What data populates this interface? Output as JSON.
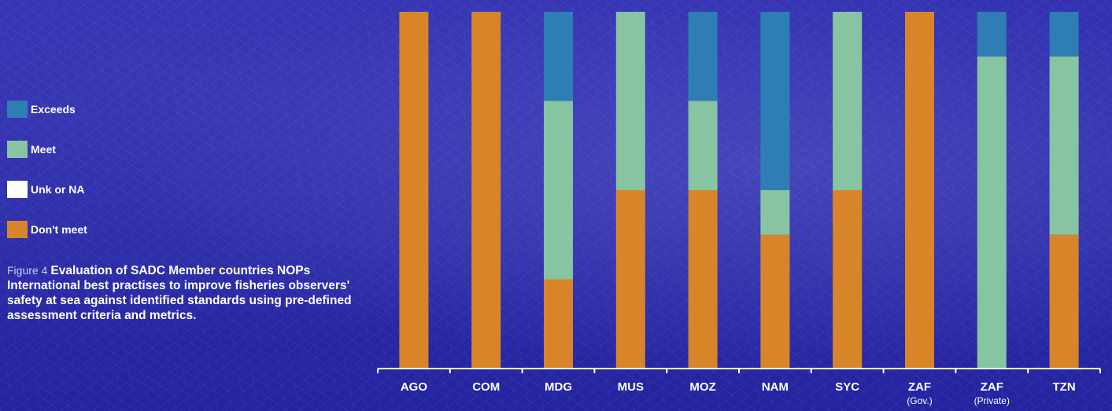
{
  "legend": [
    {
      "label": "Exceeds",
      "color": "#2e7db4"
    },
    {
      "label": "Meet",
      "color": "#87c4a1"
    },
    {
      "label": "Unk or NA",
      "color": "#ffffff"
    },
    {
      "label": "Don't meet",
      "color": "#d8852a"
    }
  ],
  "caption": {
    "figure_label": "Figure 4",
    "text": "Evaluation of SADC Member countries NOPs International best practises to improve fisheries observers' safety at sea against identified standards using pre-defined assessment criteria and metrics."
  },
  "chart_data": {
    "type": "bar",
    "stacked": true,
    "categories": [
      "AGO",
      "COM",
      "MDG",
      "MUS",
      "MOZ",
      "NAM",
      "SYC",
      "ZAF",
      "ZAF",
      "TZN"
    ],
    "sublabels": [
      "",
      "",
      "",
      "",
      "",
      "",
      "",
      "(Gov.)",
      "(Private)",
      ""
    ],
    "ylim": [
      0,
      8
    ],
    "series": [
      {
        "name": "Don't meet",
        "color": "#d8852a",
        "values": [
          8,
          8,
          2,
          4,
          4,
          3,
          4,
          8,
          0,
          3
        ]
      },
      {
        "name": "Unk or NA",
        "color": "#ffffff",
        "values": [
          0,
          0,
          0,
          0,
          0,
          0,
          0,
          0,
          0,
          0
        ]
      },
      {
        "name": "Meet",
        "color": "#87c4a1",
        "values": [
          0,
          0,
          4,
          4,
          2,
          1,
          4,
          0,
          7,
          4
        ]
      },
      {
        "name": "Exceeds",
        "color": "#2e7db4",
        "values": [
          0,
          0,
          2,
          0,
          2,
          4,
          0,
          0,
          1,
          1
        ]
      }
    ]
  }
}
